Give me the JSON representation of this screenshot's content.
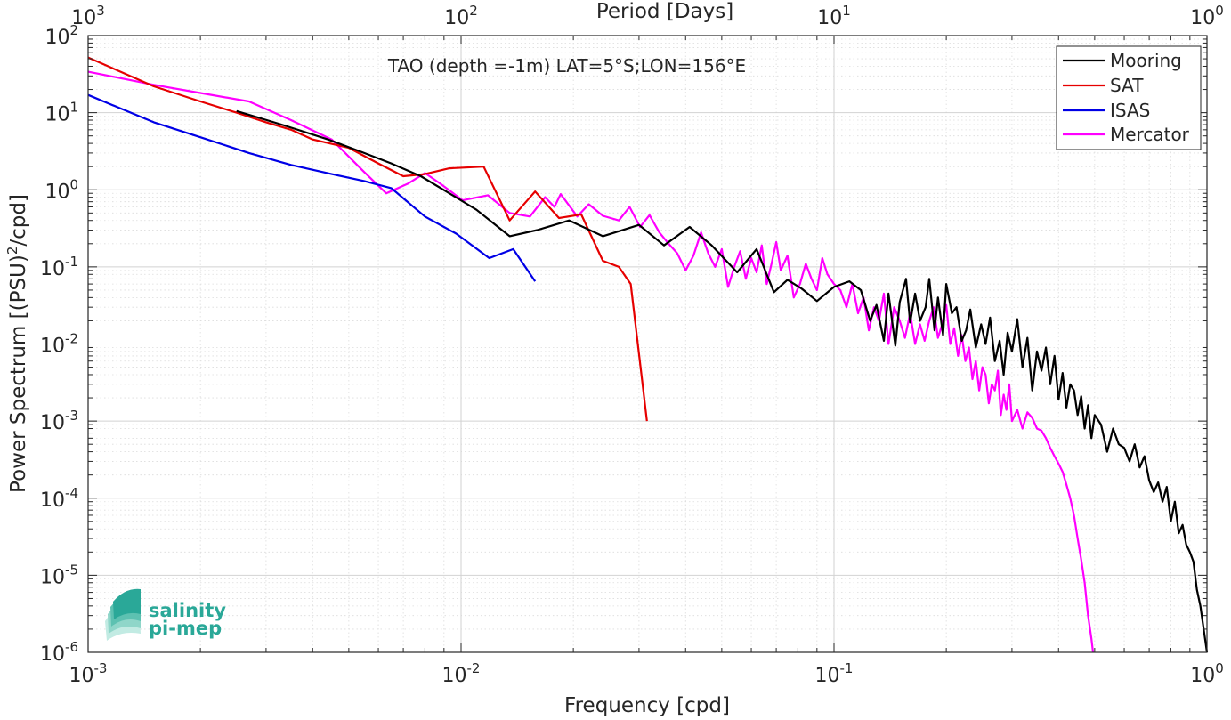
{
  "chart_data": {
    "type": "line",
    "title": "TAO (depth =-1m) LAT=5°S;LON=156°E",
    "xlabel": "Frequency [cpd]",
    "ylabel_main": "Power Spectrum [(PSU)",
    "ylabel_sup": "2",
    "ylabel_end": "/cpd]",
    "top_axis_label": "Period [Days]",
    "x_scale": "log",
    "y_scale": "log",
    "xlim": [
      0.001,
      1
    ],
    "ylim": [
      1e-06,
      100
    ],
    "grid": true,
    "legend_position": "top-right",
    "x_ticks": [
      {
        "base": "10",
        "exp": "-3",
        "value": 0.001
      },
      {
        "base": "10",
        "exp": "-2",
        "value": 0.01
      },
      {
        "base": "10",
        "exp": "-1",
        "value": 0.1
      },
      {
        "base": "10",
        "exp": "0",
        "value": 1
      }
    ],
    "y_ticks": [
      {
        "base": "10",
        "exp": "2",
        "value": 100
      },
      {
        "base": "10",
        "exp": "1",
        "value": 10
      },
      {
        "base": "10",
        "exp": "0",
        "value": 1
      },
      {
        "base": "10",
        "exp": "-1",
        "value": 0.1
      },
      {
        "base": "10",
        "exp": "-2",
        "value": 0.01
      },
      {
        "base": "10",
        "exp": "-3",
        "value": 0.001
      },
      {
        "base": "10",
        "exp": "-4",
        "value": 0.0001
      },
      {
        "base": "10",
        "exp": "-5",
        "value": 1e-05
      },
      {
        "base": "10",
        "exp": "-6",
        "value": 1e-06
      }
    ],
    "top_ticks": [
      {
        "base": "10",
        "exp": "3",
        "value": 0.001
      },
      {
        "base": "10",
        "exp": "2",
        "value": 0.01
      },
      {
        "base": "10",
        "exp": "1",
        "value": 0.1
      },
      {
        "base": "10",
        "exp": "0",
        "value": 1
      }
    ],
    "series": [
      {
        "name": "Mooring",
        "color": "#000000",
        "points": [
          [
            0.0025,
            10.5
          ],
          [
            0.0033,
            7.0
          ],
          [
            0.0044,
            4.5
          ],
          [
            0.0055,
            3.0
          ],
          [
            0.0065,
            2.2
          ],
          [
            0.0078,
            1.5
          ],
          [
            0.0093,
            0.9
          ],
          [
            0.011,
            0.55
          ],
          [
            0.0135,
            0.25
          ],
          [
            0.016,
            0.3
          ],
          [
            0.0195,
            0.4
          ],
          [
            0.024,
            0.25
          ],
          [
            0.03,
            0.35
          ],
          [
            0.035,
            0.19
          ],
          [
            0.041,
            0.33
          ],
          [
            0.047,
            0.19
          ],
          [
            0.055,
            0.085
          ],
          [
            0.062,
            0.17
          ],
          [
            0.069,
            0.047
          ],
          [
            0.075,
            0.068
          ],
          [
            0.082,
            0.052
          ],
          [
            0.09,
            0.036
          ],
          [
            0.1,
            0.055
          ],
          [
            0.11,
            0.065
          ],
          [
            0.118,
            0.05
          ],
          [
            0.125,
            0.02
          ],
          [
            0.13,
            0.032
          ],
          [
            0.136,
            0.011
          ],
          [
            0.14,
            0.045
          ],
          [
            0.146,
            0.0095
          ],
          [
            0.15,
            0.035
          ],
          [
            0.156,
            0.07
          ],
          [
            0.16,
            0.019
          ],
          [
            0.165,
            0.045
          ],
          [
            0.17,
            0.02
          ],
          [
            0.176,
            0.03
          ],
          [
            0.18,
            0.07
          ],
          [
            0.186,
            0.015
          ],
          [
            0.19,
            0.04
          ],
          [
            0.196,
            0.013
          ],
          [
            0.2,
            0.06
          ],
          [
            0.207,
            0.025
          ],
          [
            0.213,
            0.03
          ],
          [
            0.22,
            0.011
          ],
          [
            0.226,
            0.015
          ],
          [
            0.232,
            0.028
          ],
          [
            0.24,
            0.009
          ],
          [
            0.248,
            0.018
          ],
          [
            0.255,
            0.01
          ],
          [
            0.262,
            0.022
          ],
          [
            0.27,
            0.006
          ],
          [
            0.278,
            0.011
          ],
          [
            0.285,
            0.004
          ],
          [
            0.292,
            0.014
          ],
          [
            0.3,
            0.008
          ],
          [
            0.31,
            0.021
          ],
          [
            0.32,
            0.005
          ],
          [
            0.33,
            0.012
          ],
          [
            0.34,
            0.0025
          ],
          [
            0.35,
            0.008
          ],
          [
            0.36,
            0.0045
          ],
          [
            0.37,
            0.009
          ],
          [
            0.38,
            0.003
          ],
          [
            0.39,
            0.007
          ],
          [
            0.4,
            0.0019
          ],
          [
            0.41,
            0.0042
          ],
          [
            0.42,
            0.0015
          ],
          [
            0.43,
            0.003
          ],
          [
            0.44,
            0.0025
          ],
          [
            0.45,
            0.0012
          ],
          [
            0.46,
            0.0021
          ],
          [
            0.47,
            0.0008
          ],
          [
            0.48,
            0.0016
          ],
          [
            0.49,
            0.0006
          ],
          [
            0.5,
            0.0012
          ],
          [
            0.52,
            0.0009
          ],
          [
            0.54,
            0.0004
          ],
          [
            0.56,
            0.0008
          ],
          [
            0.58,
            0.0005
          ],
          [
            0.6,
            0.00045
          ],
          [
            0.62,
            0.0003
          ],
          [
            0.64,
            0.0005
          ],
          [
            0.66,
            0.00025
          ],
          [
            0.68,
            0.00035
          ],
          [
            0.7,
            0.00017
          ],
          [
            0.72,
            0.00012
          ],
          [
            0.74,
            0.00016
          ],
          [
            0.76,
            9e-05
          ],
          [
            0.78,
            0.00014
          ],
          [
            0.8,
            5e-05
          ],
          [
            0.82,
            9e-05
          ],
          [
            0.84,
            3.5e-05
          ],
          [
            0.86,
            4.5e-05
          ],
          [
            0.88,
            2.5e-05
          ],
          [
            0.9,
            2e-05
          ],
          [
            0.92,
            1.5e-05
          ],
          [
            0.94,
            6.5e-06
          ],
          [
            0.96,
            4e-06
          ],
          [
            0.98,
            2e-06
          ],
          [
            1.0,
            1e-06
          ]
        ]
      },
      {
        "name": "SAT",
        "color": "#e60000",
        "points": [
          [
            0.001,
            52
          ],
          [
            0.0015,
            22
          ],
          [
            0.002,
            14
          ],
          [
            0.0025,
            10
          ],
          [
            0.003,
            7.5
          ],
          [
            0.0035,
            6.0
          ],
          [
            0.004,
            4.5
          ],
          [
            0.005,
            3.5
          ],
          [
            0.006,
            2.2
          ],
          [
            0.007,
            1.5
          ],
          [
            0.008,
            1.6
          ],
          [
            0.0093,
            1.9
          ],
          [
            0.0115,
            2.0
          ],
          [
            0.0135,
            0.4
          ],
          [
            0.0158,
            0.95
          ],
          [
            0.0183,
            0.43
          ],
          [
            0.021,
            0.48
          ],
          [
            0.024,
            0.12
          ],
          [
            0.0265,
            0.1
          ],
          [
            0.0285,
            0.06
          ],
          [
            0.0315,
            0.001
          ]
        ]
      },
      {
        "name": "ISAS",
        "color": "#0000e6",
        "points": [
          [
            0.001,
            17
          ],
          [
            0.0015,
            7.5
          ],
          [
            0.002,
            4.8
          ],
          [
            0.0027,
            3.0
          ],
          [
            0.0035,
            2.1
          ],
          [
            0.0045,
            1.6
          ],
          [
            0.0055,
            1.3
          ],
          [
            0.0065,
            1.05
          ],
          [
            0.008,
            0.45
          ],
          [
            0.0097,
            0.27
          ],
          [
            0.0119,
            0.13
          ],
          [
            0.0138,
            0.17
          ],
          [
            0.0158,
            0.065
          ]
        ]
      },
      {
        "name": "Mercator",
        "color": "#ff00ff",
        "points": [
          [
            0.001,
            34
          ],
          [
            0.0015,
            23
          ],
          [
            0.002,
            18
          ],
          [
            0.0027,
            14
          ],
          [
            0.0035,
            8.0
          ],
          [
            0.0045,
            4.5
          ],
          [
            0.0055,
            1.7
          ],
          [
            0.0063,
            0.9
          ],
          [
            0.0072,
            1.2
          ],
          [
            0.008,
            1.65
          ],
          [
            0.0088,
            1.2
          ],
          [
            0.0101,
            0.73
          ],
          [
            0.0118,
            0.85
          ],
          [
            0.0135,
            0.5
          ],
          [
            0.0153,
            0.45
          ],
          [
            0.0168,
            0.8
          ],
          [
            0.0178,
            0.6
          ],
          [
            0.0185,
            0.88
          ],
          [
            0.0205,
            0.45
          ],
          [
            0.022,
            0.65
          ],
          [
            0.024,
            0.46
          ],
          [
            0.0265,
            0.4
          ],
          [
            0.0283,
            0.6
          ],
          [
            0.0302,
            0.33
          ],
          [
            0.032,
            0.47
          ],
          [
            0.034,
            0.28
          ],
          [
            0.036,
            0.2
          ],
          [
            0.038,
            0.15
          ],
          [
            0.04,
            0.09
          ],
          [
            0.042,
            0.14
          ],
          [
            0.044,
            0.28
          ],
          [
            0.046,
            0.15
          ],
          [
            0.048,
            0.1
          ],
          [
            0.05,
            0.17
          ],
          [
            0.052,
            0.055
          ],
          [
            0.054,
            0.1
          ],
          [
            0.056,
            0.16
          ],
          [
            0.058,
            0.07
          ],
          [
            0.06,
            0.13
          ],
          [
            0.062,
            0.085
          ],
          [
            0.064,
            0.19
          ],
          [
            0.066,
            0.06
          ],
          [
            0.068,
            0.11
          ],
          [
            0.07,
            0.21
          ],
          [
            0.072,
            0.09
          ],
          [
            0.075,
            0.14
          ],
          [
            0.078,
            0.04
          ],
          [
            0.081,
            0.06
          ],
          [
            0.084,
            0.11
          ],
          [
            0.087,
            0.07
          ],
          [
            0.09,
            0.05
          ],
          [
            0.093,
            0.13
          ],
          [
            0.096,
            0.08
          ],
          [
            0.1,
            0.06
          ],
          [
            0.104,
            0.05
          ],
          [
            0.108,
            0.03
          ],
          [
            0.112,
            0.06
          ],
          [
            0.116,
            0.025
          ],
          [
            0.12,
            0.04
          ],
          [
            0.124,
            0.015
          ],
          [
            0.128,
            0.03
          ],
          [
            0.132,
            0.02
          ],
          [
            0.136,
            0.045
          ],
          [
            0.14,
            0.01
          ],
          [
            0.145,
            0.03
          ],
          [
            0.15,
            0.02
          ],
          [
            0.155,
            0.012
          ],
          [
            0.16,
            0.025
          ],
          [
            0.165,
            0.01
          ],
          [
            0.17,
            0.018
          ],
          [
            0.175,
            0.011
          ],
          [
            0.18,
            0.02
          ],
          [
            0.185,
            0.03
          ],
          [
            0.19,
            0.012
          ],
          [
            0.195,
            0.018
          ],
          [
            0.2,
            0.032
          ],
          [
            0.205,
            0.01
          ],
          [
            0.21,
            0.016
          ],
          [
            0.215,
            0.007
          ],
          [
            0.22,
            0.013
          ],
          [
            0.225,
            0.006
          ],
          [
            0.23,
            0.009
          ],
          [
            0.235,
            0.0035
          ],
          [
            0.24,
            0.006
          ],
          [
            0.245,
            0.0025
          ],
          [
            0.25,
            0.005
          ],
          [
            0.255,
            0.004
          ],
          [
            0.26,
            0.0017
          ],
          [
            0.265,
            0.003
          ],
          [
            0.27,
            0.0025
          ],
          [
            0.275,
            0.0045
          ],
          [
            0.28,
            0.0012
          ],
          [
            0.285,
            0.0022
          ],
          [
            0.29,
            0.0014
          ],
          [
            0.295,
            0.003
          ],
          [
            0.3,
            0.001
          ],
          [
            0.31,
            0.0014
          ],
          [
            0.32,
            0.0008
          ],
          [
            0.33,
            0.0013
          ],
          [
            0.34,
            0.0011
          ],
          [
            0.35,
            0.0008
          ],
          [
            0.36,
            0.00075
          ],
          [
            0.37,
            0.0006
          ],
          [
            0.38,
            0.00045
          ],
          [
            0.39,
            0.00035
          ],
          [
            0.4,
            0.00028
          ],
          [
            0.41,
            0.00022
          ],
          [
            0.42,
            0.00015
          ],
          [
            0.43,
            0.0001
          ],
          [
            0.44,
            6e-05
          ],
          [
            0.45,
            3e-05
          ],
          [
            0.46,
            1.6e-05
          ],
          [
            0.47,
            8e-06
          ],
          [
            0.48,
            3e-06
          ],
          [
            0.49,
            1.5e-06
          ],
          [
            0.495,
            1e-06
          ]
        ]
      }
    ]
  },
  "logo": {
    "line1": "salinity",
    "line2": "pi-mep",
    "color": "#2aa898"
  }
}
